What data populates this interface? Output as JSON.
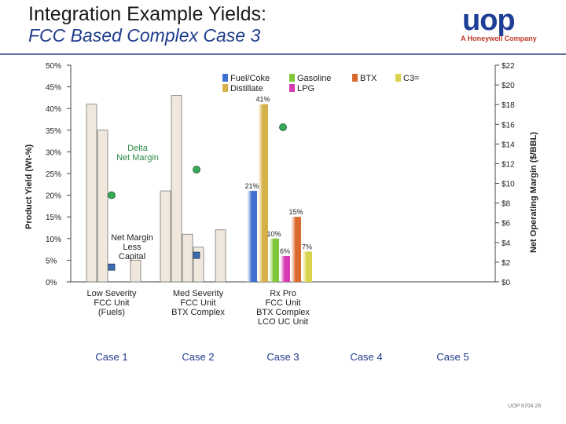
{
  "header": {
    "title": "Integration Example Yields:",
    "subtitle": "FCC Based Complex Case 3",
    "logo": "uop",
    "logo_tagline": "A Honeywell Company"
  },
  "footer": {
    "code": "UOP 6704.26"
  },
  "colors": {
    "title_blue": "#1f3c8c",
    "fuel_coke": "#3f6fd1",
    "distillate": "#d6b14a",
    "gasoline": "#7ec73a",
    "lpg": "#d63bb1",
    "btx": "#d9692e",
    "c3": "#d8d34a",
    "prior_case_bars": "#f0e8dc",
    "delta_margin_marker": "#36a95a",
    "net_margin_marker": "#3c6db0"
  },
  "chart_data": {
    "type": "bar",
    "ylabel_left": "Product Yield (Wt-%)",
    "ylabel_right": "Net Operating Margin ($/BBL)",
    "ylim_left": [
      0,
      50
    ],
    "ylim_right": [
      0,
      22
    ],
    "yticks_left": [
      "0%",
      "5%",
      "10%",
      "15%",
      "20%",
      "25%",
      "30%",
      "35%",
      "40%",
      "45%",
      "50%"
    ],
    "yticks_right": [
      "$0",
      "$2",
      "$4",
      "$6",
      "$8",
      "$10",
      "$12",
      "$14",
      "$16",
      "$18",
      "$20",
      "$22"
    ],
    "legend": {
      "row1": [
        "Fuel/Coke",
        "Gasoline",
        "BTX",
        "C3="
      ],
      "row2": [
        "Distillate",
        "LPG"
      ]
    },
    "cases": [
      {
        "name": "Case 1",
        "description": [
          "Low Severity",
          "FCC Unit",
          "(Fuels)"
        ]
      },
      {
        "name": "Case 2",
        "description": [
          "Med Severity",
          "FCC Unit",
          "BTX Complex"
        ]
      },
      {
        "name": "Case 3",
        "description": [
          "Rx Pro",
          "FCC Unit",
          "BTX Complex",
          "LCO UC Unit"
        ]
      },
      {
        "name": "Case 4",
        "description": []
      },
      {
        "name": "Case 5",
        "description": []
      }
    ],
    "series_order": [
      "Fuel/Coke",
      "Distillate",
      "Gasoline",
      "LPG",
      "BTX",
      "C3="
    ],
    "case_yields": [
      [
        0,
        41,
        35,
        0,
        0,
        5
      ],
      [
        21,
        43,
        11,
        8,
        0,
        12
      ],
      [
        21,
        41,
        10,
        6,
        15,
        7
      ]
    ],
    "value_labels_case3": [
      "21%",
      "41%",
      "10%",
      "6%",
      "15%",
      "7%"
    ],
    "delta_margin": [
      8.8,
      11.4,
      15.7
    ],
    "net_margin": [
      1.5,
      2.7,
      null
    ],
    "annotations": {
      "delta_margin": [
        "Delta",
        "Net Margin"
      ],
      "net_margin_less_capital": [
        "Net Margin",
        "Less",
        "Capital"
      ]
    }
  }
}
